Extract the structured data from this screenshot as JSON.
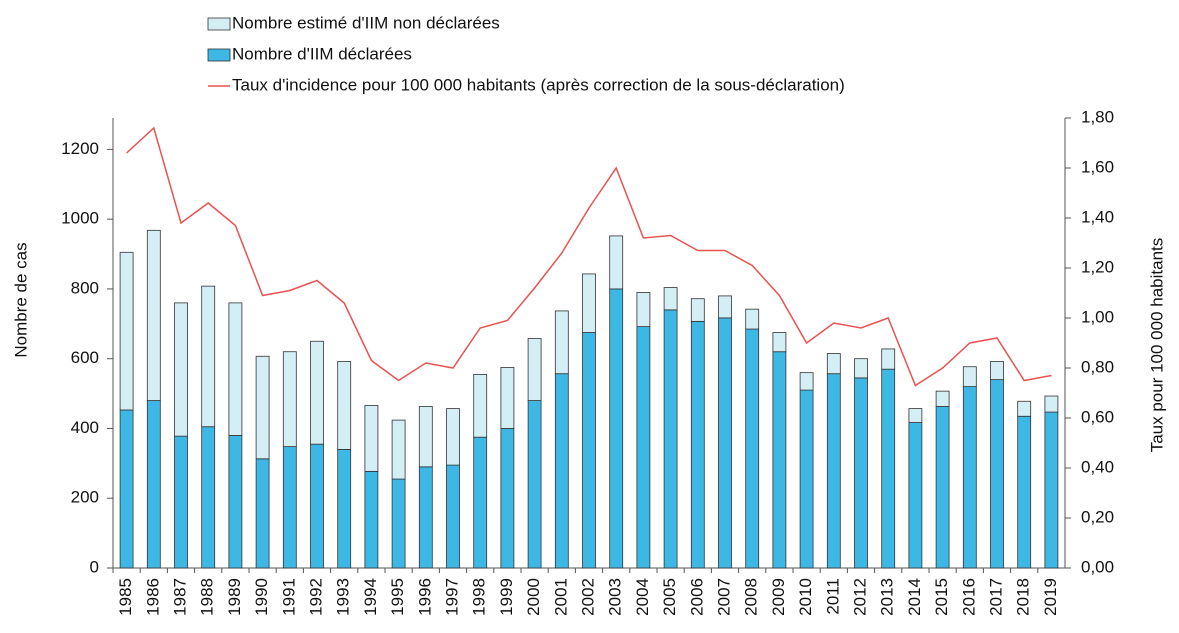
{
  "chart_data": {
    "type": "stacked_bar_line",
    "ylabel": "Nombre de cas",
    "y2label": "Taux pour 100 000 habitants",
    "categories": [
      "1985",
      "1986",
      "1987",
      "1988",
      "1989",
      "1990",
      "1991",
      "1992",
      "1993",
      "1994",
      "1995",
      "1996",
      "1997",
      "1998",
      "1999",
      "2000",
      "2001",
      "2002",
      "2003",
      "2004",
      "2005",
      "2006",
      "2007",
      "2008",
      "2009",
      "2010",
      "2011",
      "2012",
      "2013",
      "2014",
      "2015",
      "2016",
      "2017",
      "2018",
      "2019"
    ],
    "series": [
      {
        "name": "Nombre d'IIM déclarées",
        "color": "#3db8e4",
        "type": "bar",
        "values": [
          453,
          480,
          378,
          405,
          380,
          313,
          348,
          355,
          340,
          277,
          255,
          290,
          295,
          375,
          400,
          480,
          557,
          675,
          800,
          692,
          740,
          707,
          717,
          685,
          620,
          510,
          557,
          545,
          570,
          417,
          463,
          520,
          540,
          435,
          447
        ]
      },
      {
        "name": "Nombre estimé d'IIM non déclarées",
        "color": "#d4eef6",
        "type": "bar",
        "values": [
          452,
          488,
          382,
          403,
          380,
          294,
          272,
          295,
          252,
          189,
          169,
          173,
          162,
          180,
          175,
          178,
          180,
          168,
          152,
          98,
          64,
          65,
          63,
          57,
          55,
          50,
          58,
          55,
          58,
          40,
          44,
          57,
          52,
          43,
          46
        ]
      },
      {
        "name": "Taux d'incidence pour 100 000 habitants (après correction de la sous-déclaration)",
        "color": "#e8524f",
        "type": "line",
        "axis": "y2",
        "values": [
          1.66,
          1.76,
          1.38,
          1.46,
          1.37,
          1.09,
          1.11,
          1.15,
          1.06,
          0.83,
          0.75,
          0.82,
          0.8,
          0.96,
          0.99,
          1.12,
          1.26,
          1.44,
          1.6,
          1.32,
          1.33,
          1.27,
          1.27,
          1.21,
          1.09,
          0.9,
          0.98,
          0.96,
          1.0,
          0.73,
          0.8,
          0.9,
          0.92,
          0.75,
          0.77
        ]
      }
    ],
    "ylim": [
      0,
      1290
    ],
    "yticks": [
      0,
      200,
      400,
      600,
      800,
      1000,
      1200
    ],
    "y2lim": [
      0,
      1.8
    ],
    "y2ticks": [
      {
        "value": 0,
        "label": "0,00"
      },
      {
        "value": 0.2,
        "label": "0,20"
      },
      {
        "value": 0.4,
        "label": "0,40"
      },
      {
        "value": 0.6,
        "label": "0,60"
      },
      {
        "value": 0.8,
        "label": "0,80"
      },
      {
        "value": 1.0,
        "label": "1,00"
      },
      {
        "value": 1.2,
        "label": "1,20"
      },
      {
        "value": 1.4,
        "label": "1,40"
      },
      {
        "value": 1.6,
        "label": "1,60"
      },
      {
        "value": 1.8,
        "label": "1,80"
      }
    ]
  }
}
